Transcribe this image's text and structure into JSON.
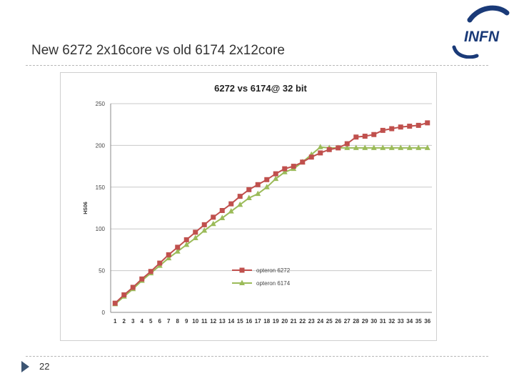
{
  "slide": {
    "title": "New 6272 2x16core vs old 6174 2x12core",
    "page_number": "22",
    "logo_text": "INFN"
  },
  "colors": {
    "series_6272": "#c0504d",
    "series_6174": "#9bbb59",
    "logo_blue": "#1a3a78",
    "divider": "#b8b8b8"
  },
  "icons": {
    "logo": "infn-logo",
    "bullet": "triangle-bullet-icon"
  },
  "chart_data": {
    "type": "line",
    "title": "6272  vs 6174@ 32 bit",
    "xlabel": "",
    "ylabel": "HS06",
    "ylim": [
      0,
      250
    ],
    "yticks": [
      0,
      50,
      100,
      150,
      200,
      250
    ],
    "grid": true,
    "legend_placement": "center",
    "categories": [
      "1",
      "2",
      "3",
      "4",
      "5",
      "6",
      "7",
      "8",
      "9",
      "10",
      "11",
      "12",
      "13",
      "14",
      "15",
      "16",
      "17",
      "18",
      "19",
      "20",
      "21",
      "22",
      "23",
      "24",
      "25",
      "26",
      "27",
      "28",
      "29",
      "30",
      "31",
      "32",
      "33",
      "34",
      "35",
      "36"
    ],
    "series": [
      {
        "name": "opteron 6272",
        "marker": "square",
        "color": "#c0504d",
        "values": [
          11,
          21,
          30,
          40,
          49,
          59,
          69,
          78,
          87,
          96,
          105,
          114,
          122,
          130,
          139,
          147,
          153,
          159,
          166,
          172,
          175,
          180,
          186,
          191,
          195,
          197,
          202,
          210,
          211,
          213,
          218,
          220,
          222,
          223,
          224,
          227
        ]
      },
      {
        "name": "opteron 6174",
        "marker": "triangle",
        "color": "#9bbb59",
        "values": [
          10,
          19,
          28,
          38,
          47,
          56,
          65,
          73,
          81,
          89,
          98,
          106,
          113,
          121,
          129,
          137,
          142,
          150,
          160,
          168,
          172,
          180,
          189,
          198,
          197,
          197,
          197,
          197,
          197,
          197,
          197,
          197,
          197,
          197,
          197,
          197
        ]
      }
    ]
  }
}
